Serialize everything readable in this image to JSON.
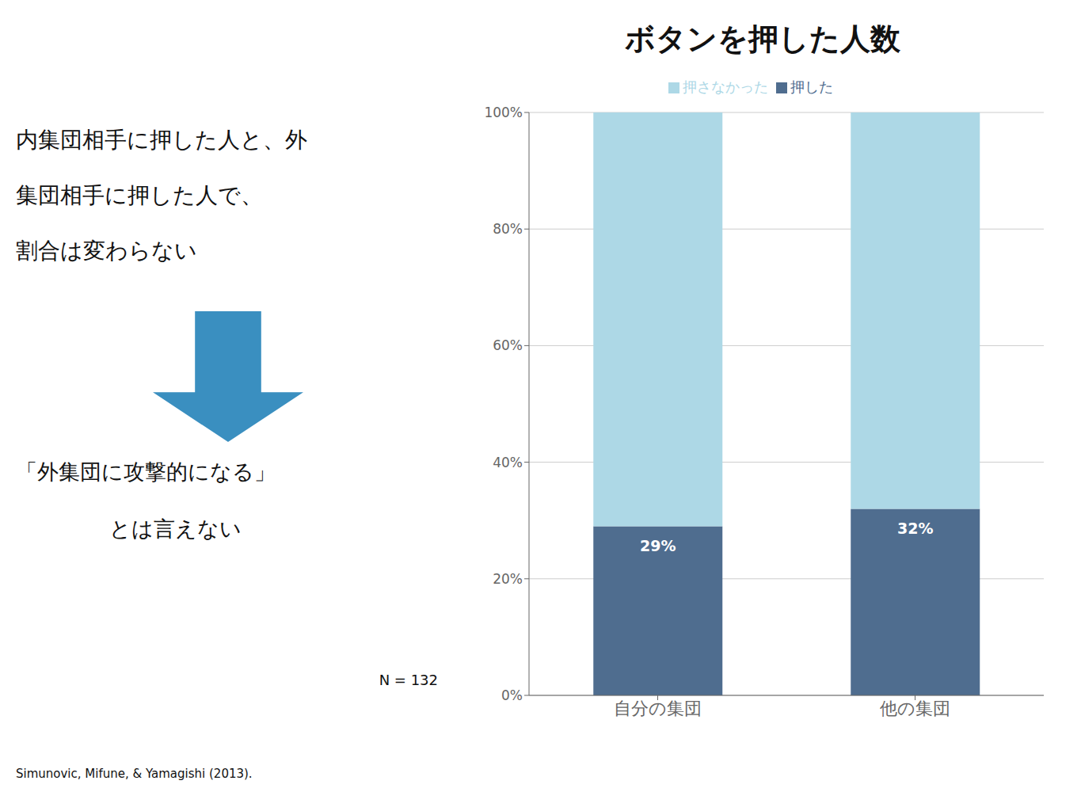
{
  "chart_data": {
    "type": "bar",
    "title": "ボタンを押した人数",
    "categories": [
      "自分の集団",
      "他の集団"
    ],
    "series": [
      {
        "name": "押した",
        "color": "#4f6d8f",
        "values": [
          29,
          32
        ],
        "data_labels": true,
        "value_labels": [
          "29%",
          "32%"
        ]
      },
      {
        "name": "押さなかった",
        "color": "#add8e6",
        "values": [
          71,
          68
        ]
      }
    ],
    "stacked": true,
    "ylim": [
      0,
      100
    ],
    "yticks": [
      {
        "value": 0,
        "label": "0%"
      },
      {
        "value": 20,
        "label": "20%"
      },
      {
        "value": 40,
        "label": "40%"
      },
      {
        "value": 60,
        "label": "60%"
      },
      {
        "value": 80,
        "label": "80%"
      },
      {
        "value": 100,
        "label": "100%"
      }
    ],
    "grid": true,
    "legend": "top",
    "annotations": [
      "内集団相手に押した人と、外",
      "集団相手に押した人で、",
      "割合は変わらない",
      "「外集団に攻撃的になる」",
      "とは言えない",
      "N = 132",
      "Simunovic, Mifune, & Yamagishi (2013)."
    ]
  }
}
